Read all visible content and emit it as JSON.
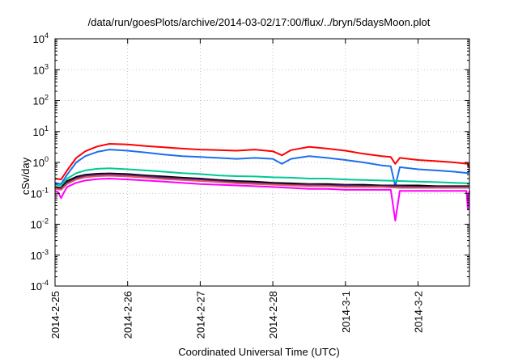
{
  "chart_data": {
    "type": "line",
    "title": "/data/run/goesPlots/archive/2014-03-02/17:00/flux/../bryn/5daysMoon.plot",
    "xlabel": "Coordinated Universal Time (UTC)",
    "ylabel": "cSv/day",
    "yscale": "log",
    "ylim": [
      0.0001,
      10000
    ],
    "xlim": [
      "2014-02-25T00:00",
      "2014-03-02T17:00"
    ],
    "xticks": [
      "2014-2-25",
      "2014-2-26",
      "2014-2-27",
      "2014-2-28",
      "2014-3-1",
      "2014-3-2"
    ],
    "yticks": [
      {
        "base": "10",
        "exp": "-4",
        "value": 0.0001
      },
      {
        "base": "10",
        "exp": "-3",
        "value": 0.001
      },
      {
        "base": "10",
        "exp": "-2",
        "value": 0.01
      },
      {
        "base": "10",
        "exp": "-1",
        "value": 0.1
      },
      {
        "base": "10",
        "exp": "0",
        "value": 1
      },
      {
        "base": "10",
        "exp": "1",
        "value": 10
      },
      {
        "base": "10",
        "exp": "2",
        "value": 100
      },
      {
        "base": "10",
        "exp": "3",
        "value": 1000
      },
      {
        "base": "10",
        "exp": "4",
        "value": 10000
      }
    ],
    "grid": true,
    "series": [
      {
        "color": "#ff0000",
        "x": [
          "2014-02-25T00:00",
          "2014-02-25T02:00",
          "2014-02-25T04:00",
          "2014-02-25T07:00",
          "2014-02-25T10:00",
          "2014-02-25T14:00",
          "2014-02-25T18:00",
          "2014-02-26T00:00",
          "2014-02-26T06:00",
          "2014-02-26T12:00",
          "2014-02-26T18:00",
          "2014-02-27T00:00",
          "2014-02-27T06:00",
          "2014-02-27T12:00",
          "2014-02-27T18:00",
          "2014-02-28T00:00",
          "2014-02-28T03:00",
          "2014-02-28T06:00",
          "2014-02-28T12:00",
          "2014-02-28T18:00",
          "2014-03-01T00:00",
          "2014-03-01T06:00",
          "2014-03-01T12:00",
          "2014-03-01T15:00",
          "2014-03-01T16:30",
          "2014-03-01T18:00",
          "2014-03-02T00:00",
          "2014-03-02T06:00",
          "2014-03-02T12:00",
          "2014-03-02T16:30",
          "2014-03-02T17:00"
        ],
        "y": [
          0.3,
          0.28,
          0.55,
          1.4,
          2.3,
          3.3,
          4.0,
          3.8,
          3.4,
          3.1,
          2.8,
          2.6,
          2.5,
          2.4,
          2.6,
          2.3,
          1.7,
          2.5,
          3.2,
          2.8,
          2.4,
          1.9,
          1.6,
          1.5,
          0.9,
          1.4,
          1.2,
          1.1,
          1.0,
          0.9,
          0.65
        ]
      },
      {
        "color": "#1e6ef0",
        "x": [
          "2014-02-25T00:00",
          "2014-02-25T02:00",
          "2014-02-25T04:00",
          "2014-02-25T07:00",
          "2014-02-25T10:00",
          "2014-02-25T14:00",
          "2014-02-25T18:00",
          "2014-02-26T00:00",
          "2014-02-26T06:00",
          "2014-02-26T12:00",
          "2014-02-26T18:00",
          "2014-02-27T00:00",
          "2014-02-27T06:00",
          "2014-02-27T12:00",
          "2014-02-27T18:00",
          "2014-02-28T00:00",
          "2014-02-28T03:00",
          "2014-02-28T06:00",
          "2014-02-28T12:00",
          "2014-02-28T18:00",
          "2014-03-01T00:00",
          "2014-03-01T06:00",
          "2014-03-01T12:00",
          "2014-03-01T15:00",
          "2014-03-01T16:30",
          "2014-03-01T18:00",
          "2014-03-02T00:00",
          "2014-03-02T06:00",
          "2014-03-02T12:00",
          "2014-03-02T16:30",
          "2014-03-02T17:00"
        ],
        "y": [
          0.22,
          0.2,
          0.4,
          1.0,
          1.6,
          2.2,
          2.6,
          2.4,
          2.1,
          1.8,
          1.6,
          1.5,
          1.4,
          1.3,
          1.4,
          1.3,
          0.9,
          1.3,
          1.6,
          1.4,
          1.2,
          1.0,
          0.8,
          0.75,
          0.17,
          0.7,
          0.6,
          0.55,
          0.5,
          0.45,
          0.6
        ]
      },
      {
        "color": "#00c896",
        "x": [
          "2014-02-25T00:00",
          "2014-02-25T02:00",
          "2014-02-25T04:00",
          "2014-02-25T07:00",
          "2014-02-25T10:00",
          "2014-02-25T14:00",
          "2014-02-25T18:00",
          "2014-02-26T00:00",
          "2014-02-26T06:00",
          "2014-02-26T12:00",
          "2014-02-26T18:00",
          "2014-02-27T00:00",
          "2014-02-27T06:00",
          "2014-02-27T12:00",
          "2014-02-27T18:00",
          "2014-02-28T00:00",
          "2014-02-28T06:00",
          "2014-02-28T12:00",
          "2014-02-28T18:00",
          "2014-03-01T00:00",
          "2014-03-01T06:00",
          "2014-03-01T12:00",
          "2014-03-01T18:00",
          "2014-03-02T00:00",
          "2014-03-02T06:00",
          "2014-03-02T12:00",
          "2014-03-02T17:00"
        ],
        "y": [
          0.19,
          0.18,
          0.3,
          0.45,
          0.55,
          0.62,
          0.65,
          0.6,
          0.55,
          0.5,
          0.45,
          0.42,
          0.38,
          0.36,
          0.35,
          0.33,
          0.32,
          0.3,
          0.3,
          0.28,
          0.27,
          0.26,
          0.25,
          0.24,
          0.23,
          0.22,
          0.21
        ]
      },
      {
        "color": "#000000",
        "x": [
          "2014-02-25T00:00",
          "2014-02-25T02:00",
          "2014-02-25T04:00",
          "2014-02-25T07:00",
          "2014-02-25T10:00",
          "2014-02-25T14:00",
          "2014-02-25T18:00",
          "2014-02-26T00:00",
          "2014-02-26T06:00",
          "2014-02-26T12:00",
          "2014-02-26T18:00",
          "2014-02-27T00:00",
          "2014-02-27T06:00",
          "2014-02-27T12:00",
          "2014-02-27T18:00",
          "2014-02-28T00:00",
          "2014-02-28T06:00",
          "2014-02-28T12:00",
          "2014-02-28T18:00",
          "2014-03-01T00:00",
          "2014-03-01T06:00",
          "2014-03-01T12:00",
          "2014-03-01T18:00",
          "2014-03-02T00:00",
          "2014-03-02T06:00",
          "2014-03-02T12:00",
          "2014-03-02T17:00"
        ],
        "y": [
          0.16,
          0.15,
          0.25,
          0.34,
          0.4,
          0.43,
          0.44,
          0.42,
          0.38,
          0.35,
          0.32,
          0.3,
          0.27,
          0.25,
          0.24,
          0.22,
          0.21,
          0.2,
          0.2,
          0.19,
          0.19,
          0.18,
          0.18,
          0.18,
          0.17,
          0.17,
          0.17
        ]
      },
      {
        "color": "#5c1f7a",
        "x": [
          "2014-02-25T00:00",
          "2014-02-25T02:00",
          "2014-02-25T04:00",
          "2014-02-25T07:00",
          "2014-02-25T10:00",
          "2014-02-25T14:00",
          "2014-02-25T18:00",
          "2014-02-26T00:00",
          "2014-02-26T06:00",
          "2014-02-26T12:00",
          "2014-02-26T18:00",
          "2014-02-27T00:00",
          "2014-02-27T06:00",
          "2014-02-27T12:00",
          "2014-02-27T18:00",
          "2014-02-28T00:00",
          "2014-02-28T06:00",
          "2014-02-28T12:00",
          "2014-02-28T18:00",
          "2014-03-01T00:00",
          "2014-03-01T06:00",
          "2014-03-01T12:00",
          "2014-03-01T18:00",
          "2014-03-02T00:00",
          "2014-03-02T06:00",
          "2014-03-02T12:00",
          "2014-03-02T17:00"
        ],
        "y": [
          0.15,
          0.14,
          0.22,
          0.31,
          0.37,
          0.4,
          0.41,
          0.39,
          0.35,
          0.32,
          0.3,
          0.28,
          0.25,
          0.23,
          0.22,
          0.2,
          0.19,
          0.19,
          0.18,
          0.18,
          0.17,
          0.17,
          0.17,
          0.16,
          0.16,
          0.16,
          0.16
        ]
      },
      {
        "color": "#e05a64",
        "x": [
          "2014-02-25T00:00",
          "2014-02-25T02:00",
          "2014-02-25T04:00",
          "2014-02-25T07:00",
          "2014-02-25T10:00",
          "2014-02-25T14:00",
          "2014-02-25T18:00",
          "2014-02-26T00:00",
          "2014-02-26T06:00",
          "2014-02-26T12:00",
          "2014-02-26T18:00",
          "2014-02-27T00:00",
          "2014-02-27T06:00",
          "2014-02-27T12:00",
          "2014-02-27T18:00",
          "2014-02-28T00:00",
          "2014-02-28T06:00",
          "2014-02-28T12:00",
          "2014-02-28T18:00",
          "2014-03-01T00:00",
          "2014-03-01T06:00",
          "2014-03-01T12:00",
          "2014-03-01T18:00",
          "2014-03-02T00:00",
          "2014-03-02T06:00",
          "2014-03-02T12:00",
          "2014-03-02T17:00"
        ],
        "y": [
          0.14,
          0.13,
          0.2,
          0.28,
          0.33,
          0.36,
          0.37,
          0.35,
          0.32,
          0.29,
          0.27,
          0.25,
          0.23,
          0.21,
          0.2,
          0.19,
          0.18,
          0.17,
          0.17,
          0.16,
          0.16,
          0.16,
          0.15,
          0.15,
          0.15,
          0.15,
          0.15
        ]
      },
      {
        "color": "#ff00ff",
        "x": [
          "2014-02-25T00:00",
          "2014-02-25T01:00",
          "2014-02-25T02:00",
          "2014-02-25T03:00",
          "2014-02-25T04:00",
          "2014-02-25T07:00",
          "2014-02-25T10:00",
          "2014-02-25T14:00",
          "2014-02-25T18:00",
          "2014-02-26T00:00",
          "2014-02-26T06:00",
          "2014-02-26T12:00",
          "2014-02-26T18:00",
          "2014-02-27T00:00",
          "2014-02-27T06:00",
          "2014-02-27T12:00",
          "2014-02-27T18:00",
          "2014-02-28T00:00",
          "2014-02-28T06:00",
          "2014-02-28T12:00",
          "2014-02-28T18:00",
          "2014-03-01T00:00",
          "2014-03-01T06:00",
          "2014-03-01T12:00",
          "2014-03-01T15:00",
          "2014-03-01T16:30",
          "2014-03-01T18:00",
          "2014-03-02T00:00",
          "2014-03-02T06:00",
          "2014-03-02T12:00",
          "2014-03-02T16:00",
          "2014-03-02T16:30",
          "2014-03-02T17:00"
        ],
        "y": [
          0.12,
          0.11,
          0.07,
          0.11,
          0.16,
          0.22,
          0.26,
          0.29,
          0.3,
          0.28,
          0.26,
          0.24,
          0.22,
          0.2,
          0.19,
          0.18,
          0.17,
          0.16,
          0.15,
          0.14,
          0.14,
          0.13,
          0.13,
          0.13,
          0.13,
          0.013,
          0.12,
          0.12,
          0.12,
          0.12,
          0.12,
          0.03,
          0.12
        ]
      }
    ]
  }
}
